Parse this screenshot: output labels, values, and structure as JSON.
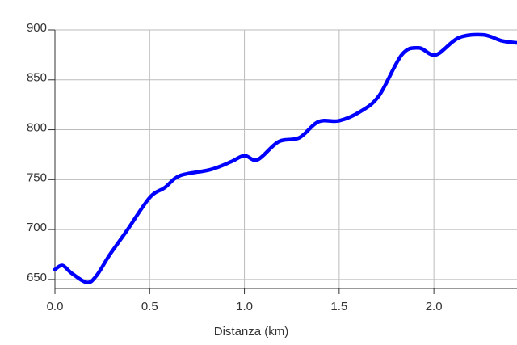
{
  "chart_data": {
    "type": "line",
    "x": [
      0,
      0.04,
      0.09,
      0.17,
      0.22,
      0.29,
      0.38,
      0.5,
      0.58,
      0.66,
      0.82,
      0.93,
      1.0,
      1.07,
      1.18,
      1.29,
      1.39,
      1.5,
      1.61,
      1.71,
      1.83,
      1.92,
      2.01,
      2.13,
      2.26,
      2.36,
      2.44
    ],
    "values": [
      660,
      664,
      656,
      647,
      654,
      675,
      699,
      732,
      742,
      754,
      760,
      768,
      774,
      770,
      788,
      792,
      808,
      809,
      818,
      834,
      875,
      882,
      875,
      892,
      895,
      889,
      887
    ],
    "color": "#0000ff",
    "x_label": "Distanza (km)",
    "xlim": [
      0,
      2.43
    ],
    "xticks": [
      {
        "value": 0,
        "label": "0.0"
      },
      0.5,
      {
        "value": 1,
        "label": "1.0"
      },
      1.5,
      {
        "value": 2,
        "label": "2.0"
      }
    ],
    "ylim": [
      641,
      900
    ],
    "yticks": [
      650,
      700,
      750,
      800,
      850,
      900
    ],
    "grid": true
  }
}
